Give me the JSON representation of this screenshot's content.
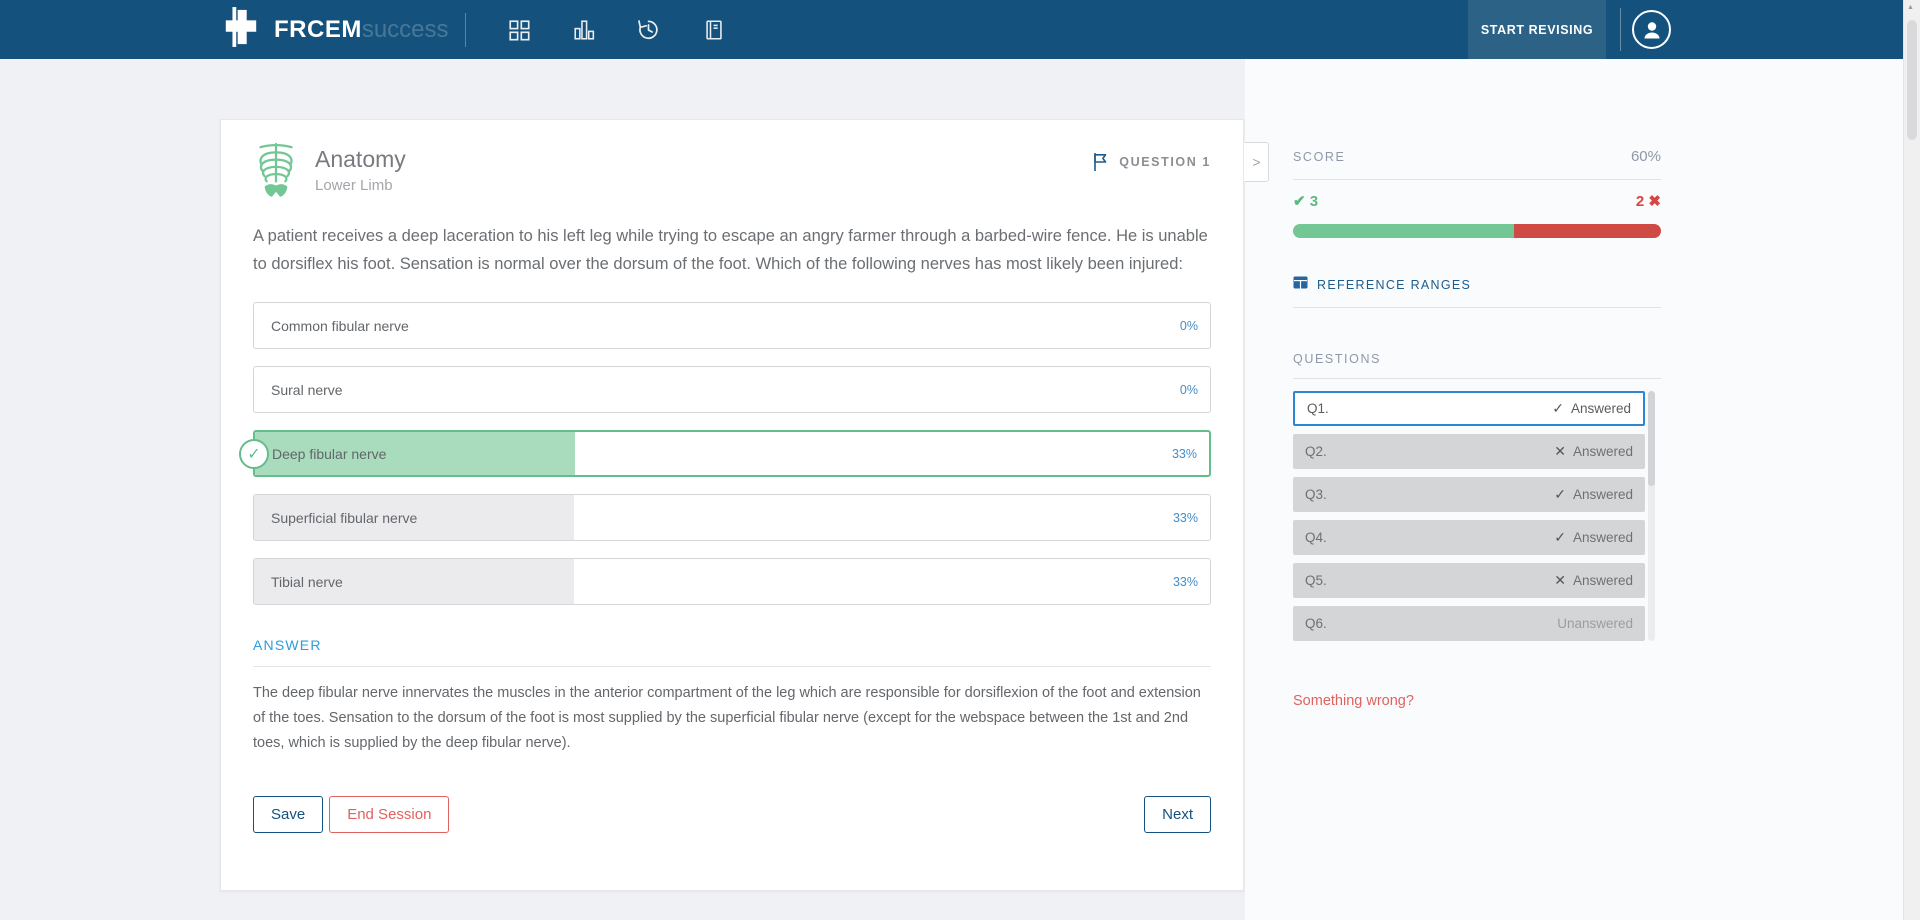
{
  "navbar": {
    "brand_bold": "FRCEM",
    "brand_light": "success",
    "icons": [
      "grid-icon",
      "bar-chart-icon",
      "history-icon",
      "book-icon"
    ],
    "start_revising_label": "START REVISING"
  },
  "question_panel": {
    "category": "Anatomy",
    "subcategory": "Lower Limb",
    "category_icon": "ribcage-icon",
    "flag_icon": "flag-icon",
    "question_label": "QUESTION 1",
    "collapse_glyph": ">",
    "question_text": "A patient receives a deep laceration to his left leg while trying to escape an angry farmer through a barbed-wire fence. He is unable to dorsiflex his foot. Sensation is normal over the dorsum of the foot. Which of the following nerves has most likely been injured:",
    "options": [
      {
        "label": "Common fibular nerve",
        "percent": "0%",
        "fill_pct": 0,
        "state": "default"
      },
      {
        "label": "Sural nerve",
        "percent": "0%",
        "fill_pct": 0,
        "state": "default"
      },
      {
        "label": "Deep fibular nerve",
        "percent": "33%",
        "fill_pct": 33.5,
        "state": "selected-correct",
        "check_glyph": "✓"
      },
      {
        "label": "Superficial fibular nerve",
        "percent": "33%",
        "fill_pct": 33.5,
        "state": "answered"
      },
      {
        "label": "Tibial nerve",
        "percent": "33%",
        "fill_pct": 33.5,
        "state": "answered"
      }
    ],
    "answer_heading": "ANSWER",
    "answer_text": "The deep fibular nerve innervates the muscles in the anterior compartment of the leg which are responsible for dorsiflexion of the foot and extension of the toes. Sensation to the dorsum of the foot is most supplied by the superficial fibular nerve (except for the webspace between the 1st and 2nd toes, which is supplied by the deep fibular nerve).",
    "save_label": "Save",
    "end_session_label": "End Session",
    "next_label": "Next"
  },
  "sidebar": {
    "score_label": "SCORE",
    "score_value": "60%",
    "correct_glyph": "✔",
    "correct_count": "3",
    "incorrect_count": "2",
    "incorrect_glyph": "✖",
    "score_bar": {
      "correct_pct": 60,
      "incorrect_pct": 40
    },
    "reference_ranges_label": "REFERENCE RANGES",
    "reference_ranges_icon": "table-icon",
    "questions_label": "QUESTIONS",
    "questions": [
      {
        "label": "Q1.",
        "glyph": "✓",
        "status": "Answered",
        "active": true
      },
      {
        "label": "Q2.",
        "glyph": "✕",
        "status": "Answered",
        "active": false
      },
      {
        "label": "Q3.",
        "glyph": "✓",
        "status": "Answered",
        "active": false
      },
      {
        "label": "Q4.",
        "glyph": "✓",
        "status": "Answered",
        "active": false
      },
      {
        "label": "Q5.",
        "glyph": "✕",
        "status": "Answered",
        "active": false
      },
      {
        "label": "Q6.",
        "glyph": "",
        "status": "Unanswered",
        "active": false
      }
    ],
    "something_wrong_label": "Something wrong?"
  },
  "colors": {
    "navbar_bg": "#14517C",
    "accent_green": "#72C795",
    "accent_red": "#D04A45",
    "link_blue": "#3F8ECB",
    "answer_blue": "#2D9DDB",
    "active_row_blue": "#2E86D1",
    "dark_blue": "#1D5C8C"
  }
}
